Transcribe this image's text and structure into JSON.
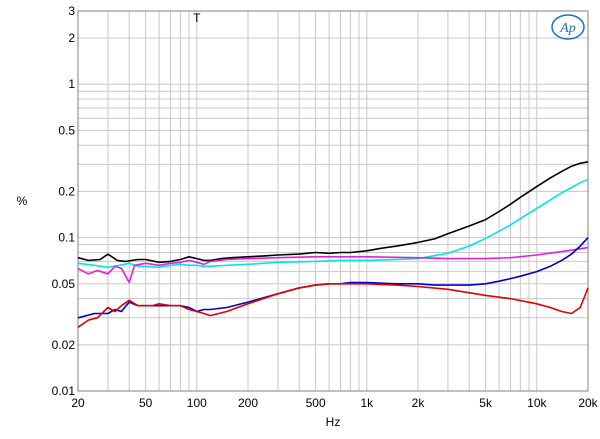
{
  "chart_data": {
    "type": "line",
    "xlabel": "Hz",
    "ylabel": "%",
    "xscale": "log",
    "yscale": "log",
    "xlim": [
      20,
      20000
    ],
    "ylim": [
      0.01,
      3
    ],
    "grid": true,
    "x_ticks": [
      {
        "value": 20,
        "label": "20"
      },
      {
        "value": 50,
        "label": "50"
      },
      {
        "value": 100,
        "label": "100"
      },
      {
        "value": 200,
        "label": "200"
      },
      {
        "value": 500,
        "label": "500"
      },
      {
        "value": 1000,
        "label": "1k"
      },
      {
        "value": 2000,
        "label": "2k"
      },
      {
        "value": 5000,
        "label": "5k"
      },
      {
        "value": 10000,
        "label": "10k"
      },
      {
        "value": 20000,
        "label": "20k"
      }
    ],
    "y_ticks": [
      {
        "value": 3,
        "label": "3"
      },
      {
        "value": 2,
        "label": "2"
      },
      {
        "value": 1,
        "label": "1"
      },
      {
        "value": 0.5,
        "label": "0.5"
      },
      {
        "value": 0.2,
        "label": "0.2"
      },
      {
        "value": 0.1,
        "label": "0.1"
      },
      {
        "value": 0.05,
        "label": "0.05"
      },
      {
        "value": 0.02,
        "label": "0.02"
      },
      {
        "value": 0.01,
        "label": "0.01"
      }
    ],
    "annotation": {
      "text": "T",
      "x": 100,
      "y": 2.7
    },
    "logo_text": "Ap",
    "series": [
      {
        "color": "#000000",
        "x": [
          20,
          23,
          27,
          30,
          34,
          38,
          45,
          50,
          60,
          70,
          80,
          90,
          100,
          110,
          120,
          140,
          160,
          200,
          250,
          300,
          400,
          500,
          600,
          700,
          800,
          1000,
          1200,
          1500,
          2000,
          2500,
          3000,
          4000,
          5000,
          6000,
          7000,
          8000,
          10000,
          12000,
          14000,
          16000,
          18000,
          20000
        ],
        "y": [
          0.074,
          0.071,
          0.072,
          0.078,
          0.071,
          0.07,
          0.072,
          0.072,
          0.069,
          0.07,
          0.072,
          0.075,
          0.073,
          0.071,
          0.071,
          0.073,
          0.074,
          0.075,
          0.076,
          0.077,
          0.078,
          0.08,
          0.079,
          0.08,
          0.08,
          0.082,
          0.085,
          0.088,
          0.093,
          0.098,
          0.106,
          0.119,
          0.131,
          0.148,
          0.165,
          0.183,
          0.215,
          0.245,
          0.27,
          0.292,
          0.305,
          0.312
        ]
      },
      {
        "color": "#00e5e5",
        "x": [
          20,
          25,
          30,
          35,
          40,
          45,
          50,
          60,
          70,
          80,
          90,
          100,
          110,
          120,
          150,
          200,
          300,
          500,
          700,
          1000,
          1500,
          2000,
          3000,
          4000,
          5000,
          6000,
          7000,
          8000,
          10000,
          12000,
          14000,
          16000,
          18000,
          20000
        ],
        "y": [
          0.068,
          0.066,
          0.064,
          0.066,
          0.068,
          0.065,
          0.065,
          0.064,
          0.066,
          0.067,
          0.066,
          0.066,
          0.065,
          0.065,
          0.066,
          0.067,
          0.069,
          0.07,
          0.071,
          0.071,
          0.072,
          0.073,
          0.079,
          0.088,
          0.099,
          0.11,
          0.121,
          0.133,
          0.155,
          0.176,
          0.196,
          0.212,
          0.228,
          0.24
        ]
      },
      {
        "color": "#e020e0",
        "x": [
          20,
          23,
          26,
          30,
          33,
          36,
          40,
          43,
          50,
          60,
          70,
          80,
          90,
          100,
          110,
          120,
          150,
          200,
          300,
          500,
          1000,
          2000,
          3000,
          5000,
          7000,
          10000,
          15000,
          20000
        ],
        "y": [
          0.063,
          0.058,
          0.061,
          0.058,
          0.065,
          0.063,
          0.051,
          0.066,
          0.068,
          0.066,
          0.068,
          0.069,
          0.071,
          0.069,
          0.067,
          0.07,
          0.072,
          0.073,
          0.074,
          0.075,
          0.075,
          0.074,
          0.073,
          0.073,
          0.074,
          0.077,
          0.082,
          0.086
        ]
      },
      {
        "color": "#0000cc",
        "x": [
          20,
          25,
          30,
          33,
          36,
          40,
          45,
          50,
          60,
          70,
          80,
          90,
          100,
          110,
          120,
          150,
          200,
          300,
          400,
          500,
          600,
          700,
          800,
          1000,
          1500,
          2000,
          2500,
          3000,
          4000,
          5000,
          6000,
          7000,
          8000,
          10000,
          12000,
          14000,
          16000,
          18000,
          20000
        ],
        "y": [
          0.03,
          0.032,
          0.032,
          0.034,
          0.033,
          0.038,
          0.036,
          0.036,
          0.036,
          0.036,
          0.036,
          0.035,
          0.033,
          0.034,
          0.034,
          0.035,
          0.038,
          0.043,
          0.047,
          0.049,
          0.05,
          0.05,
          0.051,
          0.051,
          0.05,
          0.05,
          0.049,
          0.049,
          0.049,
          0.05,
          0.052,
          0.054,
          0.056,
          0.06,
          0.065,
          0.071,
          0.078,
          0.088,
          0.1
        ]
      },
      {
        "color": "#e00000",
        "x": [
          20,
          23,
          26,
          30,
          33,
          36,
          40,
          45,
          50,
          55,
          60,
          70,
          80,
          90,
          100,
          110,
          120,
          150,
          200,
          300,
          400,
          500,
          600,
          700,
          800,
          1000,
          1500,
          2000,
          3000,
          5000,
          7000,
          10000,
          12000,
          14000,
          16000,
          18000,
          20000
        ],
        "y": [
          0.026,
          0.029,
          0.03,
          0.035,
          0.033,
          0.036,
          0.039,
          0.036,
          0.036,
          0.036,
          0.037,
          0.036,
          0.036,
          0.034,
          0.033,
          0.032,
          0.031,
          0.033,
          0.037,
          0.043,
          0.047,
          0.049,
          0.05,
          0.05,
          0.05,
          0.05,
          0.049,
          0.048,
          0.046,
          0.042,
          0.04,
          0.037,
          0.035,
          0.033,
          0.032,
          0.035,
          0.047
        ]
      }
    ]
  }
}
